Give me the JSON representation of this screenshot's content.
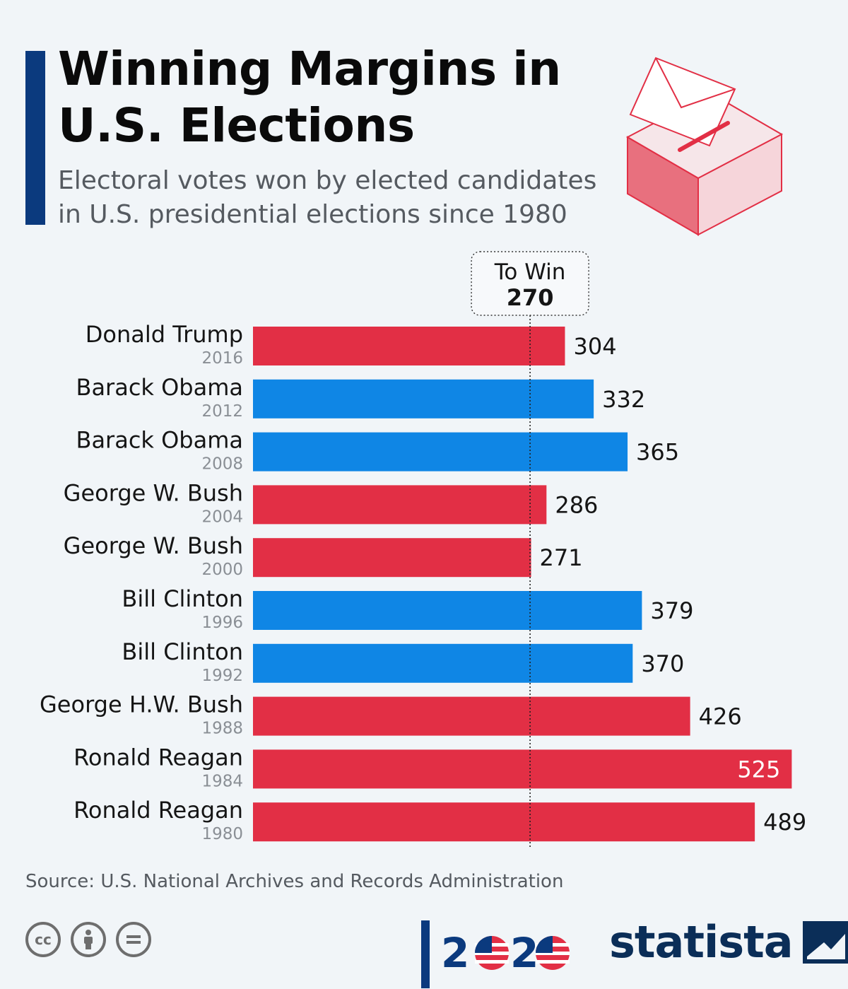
{
  "header": {
    "title_line1": "Winning Margins in",
    "title_line2": "U.S. Elections",
    "subtitle_line1": "Electoral votes won by elected candidates",
    "subtitle_line2": "in U.S. presidential elections since 1980"
  },
  "colors": {
    "republican": "#e22f45",
    "democrat": "#0f86e5",
    "accent": "#0b3a7e",
    "background": "#f1f5f8"
  },
  "chart_data": {
    "type": "bar",
    "orientation": "horizontal",
    "title": "Winning Margins in U.S. Elections",
    "subtitle": "Electoral votes won by elected candidates in U.S. presidential elections since 1980",
    "categories": [
      "Donald Trump",
      "Barack Obama",
      "Barack Obama",
      "George W. Bush",
      "George W. Bush",
      "Bill Clinton",
      "Bill Clinton",
      "George H.W. Bush",
      "Ronald Reagan",
      "Ronald Reagan"
    ],
    "years": [
      "2016",
      "2012",
      "2008",
      "2004",
      "2000",
      "1996",
      "1992",
      "1988",
      "1984",
      "1980"
    ],
    "values": [
      304,
      332,
      365,
      286,
      271,
      379,
      370,
      426,
      525,
      489
    ],
    "party": [
      "republican",
      "democrat",
      "democrat",
      "republican",
      "republican",
      "democrat",
      "democrat",
      "republican",
      "republican",
      "republican"
    ],
    "xlim": [
      0,
      538
    ],
    "reference_line": {
      "label": "To Win",
      "value": 270
    },
    "legend": "none",
    "grid": false
  },
  "footer": {
    "source": "Source: U.S. National Archives and Records Administration",
    "brand": "statista",
    "logo_text": "2020"
  }
}
